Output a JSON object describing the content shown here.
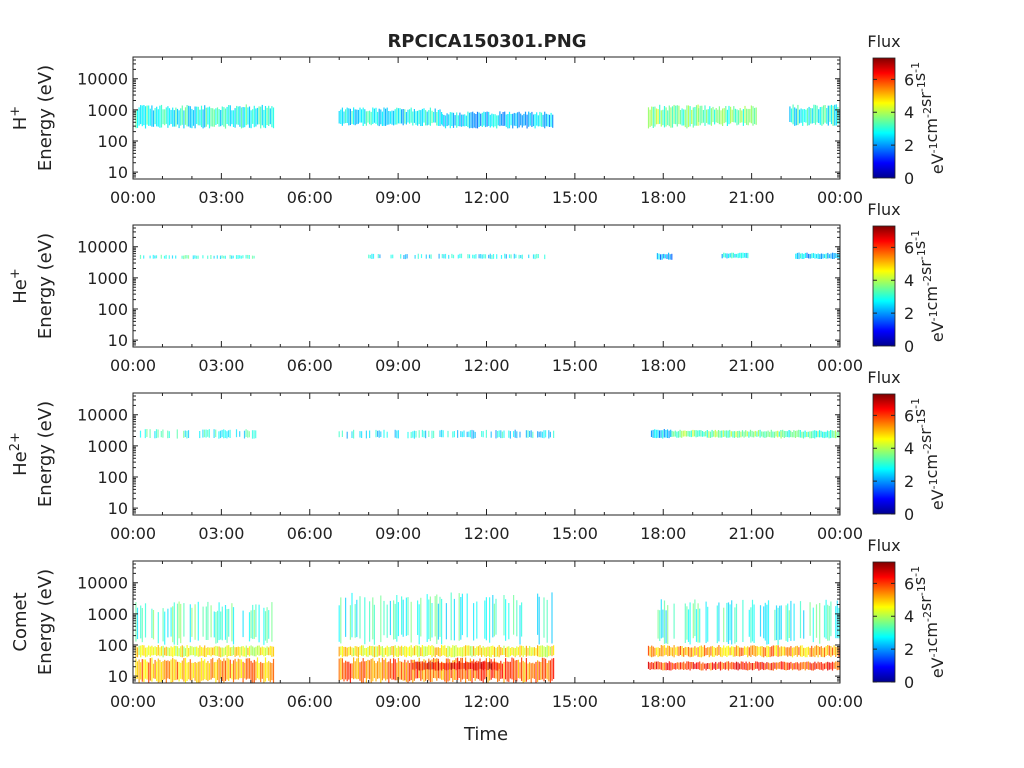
{
  "figure": {
    "title": "RPCICA150301.PNG",
    "xlabel": "Time"
  },
  "colorbar": {
    "label": "Flux",
    "unit_parts": [
      "eV",
      "-1",
      "cm",
      "-2",
      "sr",
      "-1",
      "s",
      "-1"
    ],
    "ticks": [
      "0",
      "2",
      "4",
      "6"
    ],
    "range": [
      0,
      7.3
    ],
    "colormap": "jet"
  },
  "chart_data": [
    {
      "type": "heatmap",
      "species": "H",
      "species_sup": "+",
      "ylabel": "Energy (eV)",
      "y_scale": "log",
      "ylim": [
        6,
        50000
      ],
      "y_ticks": [
        "10",
        "100",
        "1000",
        "10000"
      ],
      "x_ticks": [
        "00:00",
        "03:00",
        "06:00",
        "09:00",
        "12:00",
        "15:00",
        "18:00",
        "21:00",
        "00:00"
      ],
      "xlim_hours": [
        0,
        24
      ],
      "flux_segments": [
        {
          "start_h": 0.1,
          "end_h": 4.8,
          "e_min": 250,
          "e_max": 1500,
          "flux": 2.9
        },
        {
          "start_h": 7.0,
          "end_h": 10.5,
          "e_min": 300,
          "e_max": 1200,
          "flux": 2.7
        },
        {
          "start_h": 10.5,
          "end_h": 14.3,
          "e_min": 250,
          "e_max": 900,
          "flux": 2.4
        },
        {
          "start_h": 17.5,
          "end_h": 19.2,
          "e_min": 250,
          "e_max": 1500,
          "flux": 3.6
        },
        {
          "start_h": 19.2,
          "end_h": 21.2,
          "e_min": 300,
          "e_max": 1400,
          "flux": 3.3
        },
        {
          "start_h": 22.3,
          "end_h": 24.0,
          "e_min": 300,
          "e_max": 1500,
          "flux": 2.9
        }
      ]
    },
    {
      "type": "heatmap",
      "species": "He",
      "species_sup": "+",
      "ylabel": "Energy (eV)",
      "y_scale": "log",
      "ylim": [
        6,
        50000
      ],
      "y_ticks": [
        "10",
        "100",
        "1000",
        "10000"
      ],
      "x_ticks": [
        "00:00",
        "03:00",
        "06:00",
        "09:00",
        "12:00",
        "15:00",
        "18:00",
        "21:00",
        "00:00"
      ],
      "xlim_hours": [
        0,
        24
      ],
      "flux_segments": [
        {
          "start_h": 0.2,
          "end_h": 4.2,
          "e_min": 4000,
          "e_max": 5500,
          "flux": 3.0,
          "sparse": true
        },
        {
          "start_h": 8.0,
          "end_h": 14.0,
          "e_min": 4000,
          "e_max": 6000,
          "flux": 2.6,
          "sparse": true
        },
        {
          "start_h": 17.8,
          "end_h": 18.3,
          "e_min": 3800,
          "e_max": 6500,
          "flux": 2.2
        },
        {
          "start_h": 20.0,
          "end_h": 20.9,
          "e_min": 4200,
          "e_max": 6500,
          "flux": 2.6
        },
        {
          "start_h": 22.5,
          "end_h": 24.0,
          "e_min": 4000,
          "e_max": 6500,
          "flux": 2.4
        }
      ]
    },
    {
      "type": "heatmap",
      "species": "He",
      "species_sup": "2+",
      "ylabel": "Energy (eV)",
      "y_scale": "log",
      "ylim": [
        6,
        50000
      ],
      "y_ticks": [
        "10",
        "100",
        "1000",
        "10000"
      ],
      "x_ticks": [
        "00:00",
        "03:00",
        "06:00",
        "09:00",
        "12:00",
        "15:00",
        "18:00",
        "21:00",
        "00:00"
      ],
      "xlim_hours": [
        0,
        24
      ],
      "flux_segments": [
        {
          "start_h": 0.2,
          "end_h": 4.2,
          "e_min": 1700,
          "e_max": 3500,
          "flux": 2.9,
          "sparse": true
        },
        {
          "start_h": 7.0,
          "end_h": 14.3,
          "e_min": 1700,
          "e_max": 3300,
          "flux": 2.6,
          "sparse": true
        },
        {
          "start_h": 17.6,
          "end_h": 18.3,
          "e_min": 1700,
          "e_max": 3500,
          "flux": 2.4
        },
        {
          "start_h": 18.3,
          "end_h": 22.0,
          "e_min": 1800,
          "e_max": 3300,
          "flux": 3.6
        },
        {
          "start_h": 22.0,
          "end_h": 24.0,
          "e_min": 1700,
          "e_max": 3300,
          "flux": 3.3
        }
      ]
    },
    {
      "type": "heatmap",
      "species": "Comet",
      "species_sup": "",
      "ylabel": "Energy (eV)",
      "y_scale": "log",
      "ylim": [
        6,
        50000
      ],
      "y_ticks": [
        "10",
        "100",
        "1000",
        "10000"
      ],
      "x_ticks": [
        "00:00",
        "03:00",
        "06:00",
        "09:00",
        "12:00",
        "15:00",
        "18:00",
        "21:00",
        "00:00"
      ],
      "xlim_hours": [
        0,
        24
      ],
      "flux_segments": [
        {
          "start_h": 0.1,
          "end_h": 4.8,
          "e_min": 100,
          "e_max": 2500,
          "flux": 3.2,
          "sparse": true
        },
        {
          "start_h": 0.1,
          "end_h": 4.8,
          "e_min": 40,
          "e_max": 100,
          "flux": 4.5
        },
        {
          "start_h": 0.1,
          "end_h": 4.8,
          "e_min": 6,
          "e_max": 40,
          "flux": 5.2
        },
        {
          "start_h": 7.0,
          "end_h": 14.3,
          "e_min": 100,
          "e_max": 5000,
          "flux": 3.0,
          "sparse": true
        },
        {
          "start_h": 7.0,
          "end_h": 14.3,
          "e_min": 40,
          "e_max": 100,
          "flux": 4.6
        },
        {
          "start_h": 7.0,
          "end_h": 14.3,
          "e_min": 6,
          "e_max": 40,
          "flux": 5.6
        },
        {
          "start_h": 9.5,
          "end_h": 12.5,
          "e_min": 15,
          "e_max": 30,
          "flux": 6.4
        },
        {
          "start_h": 17.5,
          "end_h": 24.0,
          "e_min": 100,
          "e_max": 3000,
          "flux": 3.0,
          "sparse": true
        },
        {
          "start_h": 17.5,
          "end_h": 24.0,
          "e_min": 40,
          "e_max": 100,
          "flux": 5.2
        },
        {
          "start_h": 17.5,
          "end_h": 24.0,
          "e_min": 15,
          "e_max": 30,
          "flux": 6.0
        }
      ]
    }
  ]
}
